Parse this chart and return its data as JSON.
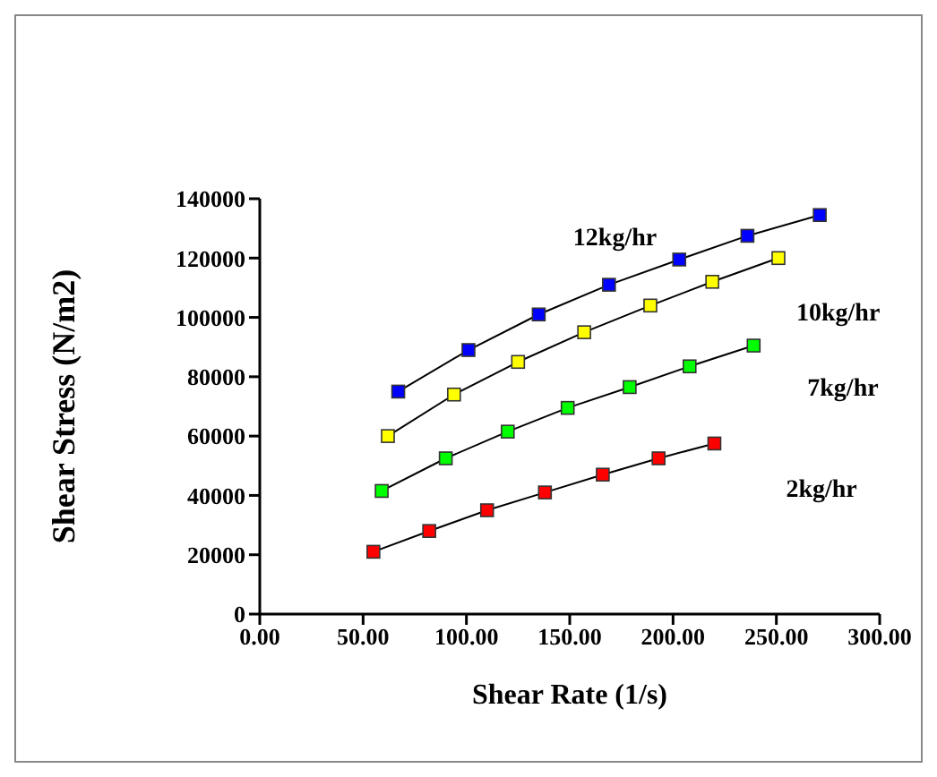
{
  "chart_data": {
    "type": "line",
    "xlabel": "Shear Rate (1/s)",
    "ylabel": "Shear Stress (N/m2)",
    "xlim": [
      0,
      300
    ],
    "xticks": [
      {
        "value": 0,
        "label": "0.00"
      },
      {
        "value": 50,
        "label": "50.00"
      },
      {
        "value": 100,
        "label": "100.00"
      },
      {
        "value": 150,
        "label": "150.00"
      },
      {
        "value": 200,
        "label": "200.00"
      },
      {
        "value": 250,
        "label": "250.00"
      },
      {
        "value": 300,
        "label": "300.00"
      }
    ],
    "ylim": [
      0,
      140000
    ],
    "yticks": [
      0,
      20000,
      40000,
      60000,
      80000,
      100000,
      120000,
      140000
    ],
    "grid": false,
    "legend": false,
    "marker": "square",
    "line_style": "solid",
    "series": [
      {
        "name": "12kg/hr",
        "color": "#0000ff",
        "x": [
          67,
          101,
          135,
          169,
          203,
          236,
          271
        ],
        "values": [
          75000,
          89000,
          101000,
          111000,
          119500,
          127500,
          134500
        ]
      },
      {
        "name": "10kg/hr",
        "color": "#ffff00",
        "x": [
          62,
          94,
          125,
          157,
          189,
          219,
          251
        ],
        "values": [
          60000,
          74000,
          85000,
          95000,
          104000,
          112000,
          120000
        ]
      },
      {
        "name": "7kg/hr",
        "color": "#00ff00",
        "x": [
          59,
          90,
          120,
          149,
          179,
          208,
          239
        ],
        "values": [
          41500,
          52500,
          61500,
          69500,
          76500,
          83500,
          90500
        ]
      },
      {
        "name": "2kg/hr",
        "color": "#ff0000",
        "x": [
          55,
          82,
          110,
          138,
          166,
          193,
          220
        ],
        "values": [
          21000,
          28000,
          35000,
          41000,
          47000,
          52500,
          57500
        ]
      }
    ]
  }
}
